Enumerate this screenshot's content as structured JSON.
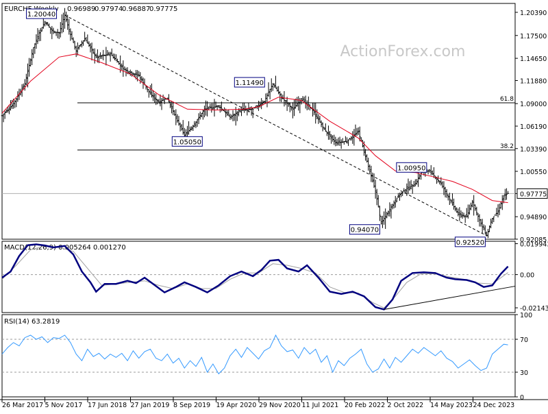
{
  "colors": {
    "price_bars": "#000000",
    "moving_average": "#e3001b",
    "macd_line": "#00007f",
    "macd_signal": "#a0a0a0",
    "rsi_line": "#3399ff",
    "label_box_border": "#00007f",
    "last_price_box": "#000000",
    "grid_dashed": "#999999",
    "watermark": "#c8c8c8"
  },
  "chart_data": [
    {
      "type": "ohlc",
      "panel": "price",
      "title": "EURCHF,Weekly",
      "header_values": [
        "0.96989",
        "0.97974",
        "0.96887",
        "0.97775"
      ],
      "watermark": "ActionForex.com",
      "ylim": [
        0.9208,
        1.215
      ],
      "y_ticks": [
        "1.20390",
        "1.17500",
        "1.14650",
        "1.11880",
        "1.09000",
        "1.06190",
        "1.03390",
        "1.00550",
        "0.97775",
        "0.94890",
        "0.92085"
      ],
      "last_price": "0.97775",
      "x_tick_labels": [
        "26 Mar 2017",
        "5 Nov 2017",
        "17 Jun 2018",
        "27 Jan 2019",
        "8 Sep 2019",
        "19 Apr 2020",
        "29 Nov 2020",
        "11 Jul 2021",
        "20 Feb 2022",
        "2 Oct 2022",
        "14 May 2023",
        "24 Dec 2023"
      ],
      "price_path": [
        [
          0,
          1.075
        ],
        [
          8,
          1.09
        ],
        [
          16,
          1.115
        ],
        [
          22,
          1.16
        ],
        [
          26,
          1.178
        ],
        [
          30,
          1.192
        ],
        [
          35,
          1.181
        ],
        [
          40,
          1.178
        ],
        [
          44,
          1.2004
        ],
        [
          48,
          1.176
        ],
        [
          52,
          1.156
        ],
        [
          58,
          1.171
        ],
        [
          66,
          1.148
        ],
        [
          76,
          1.152
        ],
        [
          86,
          1.132
        ],
        [
          96,
          1.125
        ],
        [
          104,
          1.102
        ],
        [
          110,
          1.092
        ],
        [
          116,
          1.097
        ],
        [
          122,
          1.072
        ],
        [
          128,
          1.0505
        ],
        [
          134,
          1.062
        ],
        [
          142,
          1.083
        ],
        [
          152,
          1.087
        ],
        [
          160,
          1.073
        ],
        [
          168,
          1.082
        ],
        [
          176,
          1.083
        ],
        [
          184,
          1.093
        ],
        [
          190,
          1.1149
        ],
        [
          196,
          1.098
        ],
        [
          204,
          1.083
        ],
        [
          210,
          1.096
        ],
        [
          218,
          1.082
        ],
        [
          226,
          1.058
        ],
        [
          234,
          1.041
        ],
        [
          242,
          1.043
        ],
        [
          250,
          1.055
        ],
        [
          256,
          1.018
        ],
        [
          262,
          0.981
        ],
        [
          266,
          0.9407
        ],
        [
          272,
          0.958
        ],
        [
          278,
          0.975
        ],
        [
          284,
          0.984
        ],
        [
          290,
          0.99
        ],
        [
          296,
          1.0095
        ],
        [
          302,
          1.002
        ],
        [
          308,
          0.99
        ],
        [
          314,
          0.971
        ],
        [
          320,
          0.952
        ],
        [
          326,
          0.949
        ],
        [
          330,
          0.968
        ],
        [
          336,
          0.94
        ],
        [
          340,
          0.9252
        ],
        [
          344,
          0.947
        ],
        [
          348,
          0.955
        ],
        [
          352,
          0.975
        ],
        [
          355,
          0.97775
        ]
      ],
      "moving_average": [
        [
          0,
          1.078
        ],
        [
          20,
          1.118
        ],
        [
          40,
          1.148
        ],
        [
          52,
          1.152
        ],
        [
          70,
          1.141
        ],
        [
          90,
          1.127
        ],
        [
          110,
          1.101
        ],
        [
          130,
          1.083
        ],
        [
          150,
          1.082
        ],
        [
          170,
          1.083
        ],
        [
          180,
          1.086
        ],
        [
          194,
          1.098
        ],
        [
          210,
          1.094
        ],
        [
          230,
          1.068
        ],
        [
          250,
          1.047
        ],
        [
          262,
          1.025
        ],
        [
          276,
          1.006
        ],
        [
          290,
          1.004
        ],
        [
          304,
          0.998
        ],
        [
          316,
          0.993
        ],
        [
          330,
          0.983
        ],
        [
          344,
          0.969
        ],
        [
          355,
          0.9665
        ]
      ],
      "horizontal_levels": [
        {
          "name": "fib-61.8",
          "label": "61.8",
          "value": 1.091
        },
        {
          "name": "fib-38.2",
          "label": "38.2",
          "value": 1.0321
        },
        {
          "name": "last-price-line",
          "label": "",
          "value": 0.97775
        }
      ],
      "trendline": {
        "from": [
          44,
          1.2004
        ],
        "to": [
          340,
          0.9252
        ]
      },
      "annotations": [
        {
          "text": "1.20040",
          "x": 44,
          "y": 1.2004
        },
        {
          "text": "1.05050",
          "x": 128,
          "y": 1.0505
        },
        {
          "text": "1.11490",
          "x": 190,
          "y": 1.1149
        },
        {
          "text": "1.00950",
          "x": 296,
          "y": 1.0095
        },
        {
          "text": "0.94070",
          "x": 266,
          "y": 0.9407
        },
        {
          "text": "0.92520",
          "x": 340,
          "y": 0.9252
        }
      ]
    },
    {
      "type": "line",
      "panel": "macd",
      "title": "MACD(12,26,9) 0.005264 0.001270",
      "ylim": [
        -0.0245,
        0.0215
      ],
      "y_ticks": [
        "0.019943",
        "0.00",
        "-0.021434"
      ],
      "zero_line": 0,
      "series": [
        {
          "role": "macd",
          "points": [
            [
              0,
              -0.002
            ],
            [
              6,
              0.002
            ],
            [
              12,
              0.012
            ],
            [
              18,
              0.019
            ],
            [
              24,
              0.0195
            ],
            [
              30,
              0.0188
            ],
            [
              36,
              0.0175
            ],
            [
              44,
              0.0185
            ],
            [
              50,
              0.013
            ],
            [
              56,
              0.002
            ],
            [
              62,
              -0.005
            ],
            [
              66,
              -0.011
            ],
            [
              72,
              -0.006
            ],
            [
              80,
              -0.006
            ],
            [
              88,
              -0.004
            ],
            [
              94,
              -0.0055
            ],
            [
              100,
              -0.002
            ],
            [
              106,
              -0.006
            ],
            [
              114,
              -0.0115
            ],
            [
              122,
              -0.008
            ],
            [
              128,
              -0.005
            ],
            [
              136,
              -0.008
            ],
            [
              144,
              -0.0115
            ],
            [
              152,
              -0.007
            ],
            [
              160,
              -0.001
            ],
            [
              168,
              0.002
            ],
            [
              176,
              -0.001
            ],
            [
              182,
              0.003
            ],
            [
              188,
              0.009
            ],
            [
              194,
              0.0095
            ],
            [
              200,
              0.004
            ],
            [
              208,
              0.002
            ],
            [
              214,
              0.006
            ],
            [
              222,
              -0.002
            ],
            [
              230,
              -0.011
            ],
            [
              238,
              -0.0125
            ],
            [
              246,
              -0.011
            ],
            [
              254,
              -0.014
            ],
            [
              262,
              -0.021
            ],
            [
              268,
              -0.0225
            ],
            [
              274,
              -0.016
            ],
            [
              280,
              -0.004
            ],
            [
              288,
              0.001
            ],
            [
              296,
              0.0015
            ],
            [
              304,
              0.001
            ],
            [
              312,
              -0.002
            ],
            [
              318,
              -0.003
            ],
            [
              326,
              -0.0035
            ],
            [
              332,
              -0.005
            ],
            [
              338,
              -0.008
            ],
            [
              344,
              -0.007
            ],
            [
              350,
              0.0005
            ],
            [
              355,
              0.005264
            ]
          ]
        },
        {
          "role": "signal",
          "points": [
            [
              0,
              -0.003
            ],
            [
              10,
              0.006
            ],
            [
              20,
              0.016
            ],
            [
              30,
              0.0185
            ],
            [
              40,
              0.0175
            ],
            [
              50,
              0.015
            ],
            [
              60,
              0.004
            ],
            [
              70,
              -0.007
            ],
            [
              80,
              -0.006
            ],
            [
              90,
              -0.005
            ],
            [
              100,
              -0.004
            ],
            [
              110,
              -0.007
            ],
            [
              120,
              -0.009
            ],
            [
              130,
              -0.006
            ],
            [
              140,
              -0.009
            ],
            [
              150,
              -0.009
            ],
            [
              160,
              -0.003
            ],
            [
              170,
              0.001
            ],
            [
              180,
              0.001
            ],
            [
              190,
              0.007
            ],
            [
              200,
              0.006
            ],
            [
              210,
              0.004
            ],
            [
              220,
              0.001
            ],
            [
              230,
              -0.008
            ],
            [
              240,
              -0.0115
            ],
            [
              250,
              -0.012
            ],
            [
              260,
              -0.018
            ],
            [
              268,
              -0.0215
            ],
            [
              276,
              -0.014
            ],
            [
              284,
              -0.005
            ],
            [
              294,
              0.0005
            ],
            [
              304,
              0.0005
            ],
            [
              314,
              -0.0015
            ],
            [
              324,
              -0.003
            ],
            [
              334,
              -0.0055
            ],
            [
              344,
              -0.006
            ],
            [
              355,
              0.00127
            ]
          ]
        }
      ],
      "trendline": {
        "from": [
          268,
          -0.0225
        ],
        "to": [
          360,
          -0.0075
        ]
      }
    },
    {
      "type": "line",
      "panel": "rsi",
      "title": "RSI(14) 63.2819",
      "ylim": [
        0,
        100
      ],
      "y_ticks": [
        "100",
        "70",
        "30",
        "0"
      ],
      "levels": [
        70,
        30
      ],
      "series": [
        {
          "role": "rsi",
          "points": [
            [
              0,
              52
            ],
            [
              4,
              60
            ],
            [
              8,
              66
            ],
            [
              12,
              62
            ],
            [
              16,
              72
            ],
            [
              20,
              75
            ],
            [
              24,
              70
            ],
            [
              28,
              73
            ],
            [
              32,
              66
            ],
            [
              36,
              72
            ],
            [
              40,
              71
            ],
            [
              44,
              75
            ],
            [
              48,
              66
            ],
            [
              52,
              52
            ],
            [
              56,
              44
            ],
            [
              60,
              58
            ],
            [
              64,
              49
            ],
            [
              68,
              53
            ],
            [
              72,
              46
            ],
            [
              76,
              52
            ],
            [
              80,
              48
            ],
            [
              84,
              53
            ],
            [
              88,
              44
            ],
            [
              92,
              56
            ],
            [
              96,
              47
            ],
            [
              100,
              55
            ],
            [
              104,
              58
            ],
            [
              108,
              47
            ],
            [
              112,
              44
            ],
            [
              116,
              52
            ],
            [
              120,
              41
            ],
            [
              124,
              47
            ],
            [
              128,
              35
            ],
            [
              132,
              44
            ],
            [
              136,
              37
            ],
            [
              140,
              48
            ],
            [
              144,
              30
            ],
            [
              148,
              40
            ],
            [
              152,
              28
            ],
            [
              156,
              35
            ],
            [
              160,
              50
            ],
            [
              164,
              58
            ],
            [
              168,
              48
            ],
            [
              172,
              60
            ],
            [
              176,
              53
            ],
            [
              180,
              46
            ],
            [
              184,
              56
            ],
            [
              188,
              60
            ],
            [
              192,
              75
            ],
            [
              196,
              62
            ],
            [
              200,
              55
            ],
            [
              204,
              57
            ],
            [
              208,
              47
            ],
            [
              212,
              60
            ],
            [
              216,
              52
            ],
            [
              220,
              58
            ],
            [
              224,
              42
            ],
            [
              228,
              50
            ],
            [
              232,
              30
            ],
            [
              236,
              44
            ],
            [
              240,
              38
            ],
            [
              244,
              47
            ],
            [
              248,
              52
            ],
            [
              252,
              58
            ],
            [
              256,
              40
            ],
            [
              260,
              30
            ],
            [
              264,
              34
            ],
            [
              268,
              46
            ],
            [
              272,
              35
            ],
            [
              276,
              48
            ],
            [
              280,
              42
            ],
            [
              284,
              50
            ],
            [
              288,
              58
            ],
            [
              292,
              53
            ],
            [
              296,
              60
            ],
            [
              300,
              55
            ],
            [
              304,
              50
            ],
            [
              308,
              56
            ],
            [
              312,
              47
            ],
            [
              316,
              43
            ],
            [
              320,
              35
            ],
            [
              324,
              40
            ],
            [
              328,
              45
            ],
            [
              332,
              38
            ],
            [
              336,
              32
            ],
            [
              340,
              35
            ],
            [
              344,
              52
            ],
            [
              348,
              58
            ],
            [
              352,
              64
            ],
            [
              355,
              63.28
            ]
          ]
        }
      ]
    }
  ]
}
